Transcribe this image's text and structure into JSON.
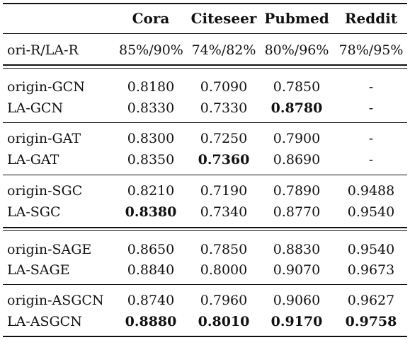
{
  "columns": [
    "",
    "Cora",
    "Citeseer",
    "Pubmed",
    "Reddit"
  ],
  "ratio_row": {
    "label": "ori-R/LA-R",
    "values": [
      "85%/90%",
      "74%/82%",
      "80%/96%",
      "78%/95%"
    ]
  },
  "rows": [
    {
      "label": "origin-GCN",
      "values": [
        "0.8180",
        "0.7090",
        "0.7850",
        "-"
      ]
    },
    {
      "label": "LA-GCN",
      "values": [
        "0.8330",
        "0.7330",
        "0.8780",
        "-"
      ]
    },
    {
      "label": "origin-GAT",
      "values": [
        "0.8300",
        "0.7250",
        "0.7900",
        "-"
      ]
    },
    {
      "label": "LA-GAT",
      "values": [
        "0.8350",
        "0.7360",
        "0.8690",
        "-"
      ]
    },
    {
      "label": "origin-SGC",
      "values": [
        "0.8210",
        "0.7190",
        "0.7890",
        "0.9488"
      ]
    },
    {
      "label": "LA-SGC",
      "values": [
        "0.8380",
        "0.7340",
        "0.8770",
        "0.9540"
      ]
    },
    {
      "label": "origin-SAGE",
      "values": [
        "0.8650",
        "0.7850",
        "0.8830",
        "0.9540"
      ]
    },
    {
      "label": "LA-SAGE",
      "values": [
        "0.8840",
        "0.8000",
        "0.9070",
        "0.9673"
      ]
    },
    {
      "label": "origin-ASGCN",
      "values": [
        "0.8740",
        "0.7960",
        "0.9060",
        "0.9627"
      ]
    },
    {
      "label": "LA-ASGCN",
      "values": [
        "0.8880",
        "0.8010",
        "0.9170",
        "0.9758"
      ]
    }
  ],
  "bold_cells": [
    {
      "row": 1,
      "col": 2
    },
    {
      "row": 3,
      "col": 1
    },
    {
      "row": 5,
      "col": 0
    },
    {
      "row": 9,
      "col": 0
    },
    {
      "row": 9,
      "col": 1
    },
    {
      "row": 9,
      "col": 2
    },
    {
      "row": 9,
      "col": 3
    }
  ]
}
